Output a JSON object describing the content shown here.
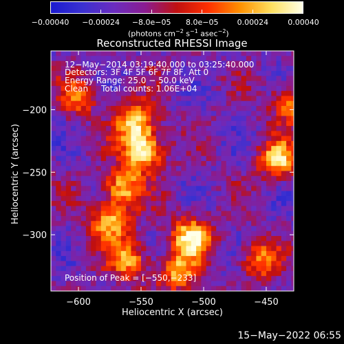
{
  "chart_data": {
    "type": "heatmap",
    "title": "Reconstructed RHESSI Image",
    "xlabel": "Heliocentric X (arcsec)",
    "ylabel": "Heliocentric Y (arcsec)",
    "xlim": [
      -622,
      -428
    ],
    "ylim": [
      -345,
      -153
    ],
    "x_ticks": [
      -600,
      -550,
      -500,
      -450
    ],
    "y_ticks": [
      -200,
      -250,
      -300
    ],
    "x_tick_labels": [
      "−600",
      "−550",
      "−500",
      "−450"
    ],
    "y_tick_labels": [
      "−200",
      "−250",
      "−300"
    ],
    "colorbar": {
      "range": [
        -0.0004,
        0.0004
      ],
      "ticks": [
        -0.0004,
        -0.00024,
        -8e-05,
        8e-05,
        0.00024,
        0.0004
      ],
      "tick_labels": [
        "−0.00040",
        "−0.00024",
        "−8.0e−05",
        "8.0e−05",
        "0.00024",
        "0.00040"
      ],
      "unit_label": {
        "prefix": "(photons cm",
        "exp1": "−2",
        "mid1": " s",
        "exp2": "−1",
        "mid2": " asec",
        "exp3": "−2",
        "suffix": ")"
      },
      "colors": [
        "#1a1ad0",
        "#3a30d0",
        "#6a2cc0",
        "#8a1c90",
        "#c01010",
        "#ff3000",
        "#ff9000",
        "#ffe060",
        "#ffffe8"
      ]
    },
    "annotations": [
      "12−May−2014 03:19:40.000 to 03:25:40.000",
      "Detectors: 3F 4F 5F 6F 7F 8F, Att 0",
      "Energy Range: 25.0 − 50.0 keV",
      "Clean     Total counts: 1.06E+04"
    ],
    "peak_label": "Position of Peak = [−550,−233]",
    "peak": [
      -550,
      -233
    ],
    "sources": [
      {
        "x": -548,
        "y": -233,
        "value": 0.0004
      },
      {
        "x": -555,
        "y": -210,
        "value": 0.00032
      },
      {
        "x": -565,
        "y": -262,
        "value": 0.00028
      },
      {
        "x": -575,
        "y": -290,
        "value": 0.00026
      },
      {
        "x": -560,
        "y": -320,
        "value": 0.00022
      },
      {
        "x": -510,
        "y": -302,
        "value": 0.00036
      },
      {
        "x": -520,
        "y": -330,
        "value": 0.00022
      },
      {
        "x": -440,
        "y": -240,
        "value": 0.0003
      },
      {
        "x": -430,
        "y": -195,
        "value": 0.00018
      },
      {
        "x": -455,
        "y": -320,
        "value": 0.00018
      },
      {
        "x": -600,
        "y": -190,
        "value": 0.00012
      }
    ]
  },
  "footer_timestamp": "15−May−2022 06:55"
}
